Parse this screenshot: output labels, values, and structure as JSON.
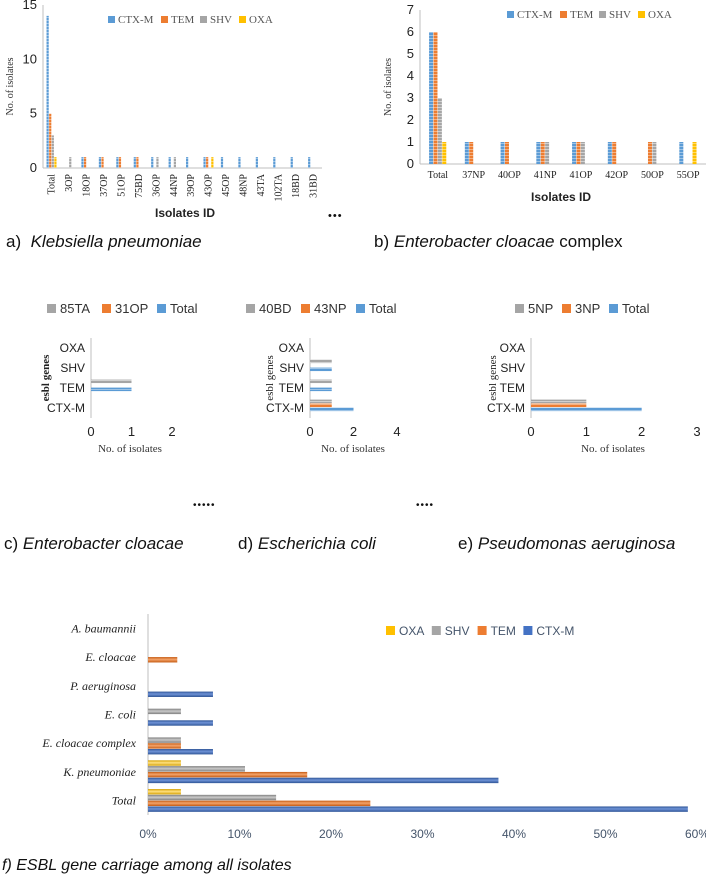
{
  "captions": {
    "a_prefix": "a)",
    "a_name": "Klebsiella pneumoniae",
    "b_prefix": "b)",
    "b_name": "Enterobacter cloacae",
    "b_suffix": "complex",
    "c_prefix": "c)",
    "c_name": "Enterobacter cloacae",
    "d_prefix": "d)",
    "d_name": "Escherichia coli",
    "e_prefix": "e)",
    "e_name": "Pseudomonas aeruginosa",
    "f": "f) ESBL gene carriage among all isolates"
  },
  "ellipses": {
    "a": "•••",
    "c": "•••••",
    "e": "••••"
  },
  "colors": {
    "ctx": "#5B9BD5",
    "tem": "#ED7D31",
    "shv": "#A5A5A5",
    "oxa": "#FFC000",
    "ctx_dark": "#4472C4",
    "axis": "#BFBFBF",
    "axis_dark": "#808080"
  },
  "chart_data": [
    {
      "id": "a",
      "type": "bar",
      "title": "",
      "xlabel": "Isolates ID",
      "ylabel": "No. of isolates",
      "ylim": [
        0,
        15
      ],
      "yticks": [
        "0",
        "5",
        "10",
        "15"
      ],
      "categories": [
        "Total",
        "3OP",
        "18OP",
        "37OP",
        "51OP",
        "75BD",
        "36OP",
        "44NP",
        "39OP",
        "43OP",
        "45OP",
        "48NP",
        "43TA",
        "102TA",
        "18BD",
        "31BD"
      ],
      "series": [
        {
          "name": "CTX-M",
          "values": [
            14,
            0,
            1,
            1,
            1,
            1,
            1,
            1,
            1,
            1,
            1,
            1,
            1,
            1,
            1,
            1
          ]
        },
        {
          "name": "TEM",
          "values": [
            5,
            0,
            1,
            1,
            1,
            1,
            0,
            0,
            0,
            1,
            0,
            0,
            0,
            0,
            0,
            0
          ]
        },
        {
          "name": "SHV",
          "values": [
            3,
            1,
            0,
            0,
            0,
            0,
            1,
            1,
            0,
            0,
            0,
            0,
            0,
            0,
            0,
            0
          ]
        },
        {
          "name": "OXA",
          "values": [
            1,
            0,
            0,
            0,
            0,
            0,
            0,
            0,
            0,
            1,
            0,
            0,
            0,
            0,
            0,
            0
          ]
        }
      ],
      "legend": [
        "CTX-M",
        "TEM",
        "SHV",
        "OXA"
      ],
      "legend_position": "top"
    },
    {
      "id": "b",
      "type": "bar",
      "title": "",
      "xlabel": "Isolates ID",
      "ylabel": "No. of isolates",
      "ylim": [
        0,
        7
      ],
      "yticks": [
        "0",
        "1",
        "2",
        "3",
        "4",
        "5",
        "6",
        "7"
      ],
      "categories": [
        "Total",
        "37NP",
        "40OP",
        "41NP",
        "41OP",
        "42OP",
        "50OP",
        "55OP"
      ],
      "series": [
        {
          "name": "CTX-M",
          "values": [
            6,
            1,
            1,
            1,
            1,
            1,
            0,
            1
          ]
        },
        {
          "name": "TEM",
          "values": [
            6,
            1,
            1,
            1,
            1,
            1,
            1,
            0
          ]
        },
        {
          "name": "SHV",
          "values": [
            3,
            0,
            0,
            1,
            1,
            0,
            1,
            0
          ]
        },
        {
          "name": "OXA",
          "values": [
            1,
            0,
            0,
            0,
            0,
            0,
            0,
            1
          ]
        }
      ],
      "legend": [
        "CTX-M",
        "TEM",
        "SHV",
        "OXA"
      ],
      "legend_position": "top"
    },
    {
      "id": "c",
      "type": "bar",
      "orientation": "horizontal",
      "xlabel": "No. of isolates",
      "ylabel": "esbl genes",
      "xlim": [
        0,
        2
      ],
      "xticks": [
        "0",
        "1",
        "2"
      ],
      "categories": [
        "CTX-M",
        "TEM",
        "SHV",
        "OXA"
      ],
      "series": [
        {
          "name": "Total",
          "values": [
            0,
            1,
            0,
            0
          ]
        },
        {
          "name": "31OP",
          "values": [
            0,
            0,
            0,
            0
          ]
        },
        {
          "name": "85TA",
          "values": [
            0,
            1,
            0,
            0
          ]
        }
      ],
      "legend": [
        "85TA",
        "31OP",
        "Total"
      ],
      "legend_position": "top"
    },
    {
      "id": "d",
      "type": "bar",
      "orientation": "horizontal",
      "xlabel": "No. of isolates",
      "ylabel": "esbl genes",
      "xlim": [
        0,
        4
      ],
      "xticks": [
        "0",
        "2",
        "4"
      ],
      "categories": [
        "CTX-M",
        "TEM",
        "SHV",
        "OXA"
      ],
      "series": [
        {
          "name": "Total",
          "values": [
            2,
            1,
            1,
            0
          ]
        },
        {
          "name": "43NP",
          "values": [
            1,
            0,
            0,
            0
          ]
        },
        {
          "name": "40BD",
          "values": [
            1,
            1,
            1,
            0
          ]
        }
      ],
      "legend": [
        "40BD",
        "43NP",
        "Total"
      ],
      "legend_position": "top"
    },
    {
      "id": "e",
      "type": "bar",
      "orientation": "horizontal",
      "xlabel": "No. of isolates",
      "ylabel": "esbl genes",
      "xlim": [
        0,
        3
      ],
      "xticks": [
        "0",
        "1",
        "2",
        "3"
      ],
      "categories": [
        "CTX-M",
        "TEM",
        "SHV",
        "OXA"
      ],
      "series": [
        {
          "name": "Total",
          "values": [
            2,
            0,
            0,
            0
          ]
        },
        {
          "name": "3NP",
          "values": [
            1,
            0,
            0,
            0
          ]
        },
        {
          "name": "5NP",
          "values": [
            1,
            0,
            0,
            0
          ]
        }
      ],
      "legend": [
        "5NP",
        "3NP",
        "Total"
      ],
      "legend_position": "top"
    },
    {
      "id": "f",
      "type": "bar",
      "orientation": "horizontal",
      "xlabel": "",
      "ylabel": "",
      "xlim": [
        0,
        60
      ],
      "xticks": [
        "0%",
        "10%",
        "20%",
        "30%",
        "40%",
        "50%",
        "60%"
      ],
      "categories": [
        "Total",
        "K. pneumoniae",
        "E. cloacae complex",
        "E. coli",
        "P. aeruginosa",
        "E. cloacae",
        "A. baumannii"
      ],
      "series": [
        {
          "name": "CTX-M",
          "values": [
            59,
            38.3,
            7.1,
            7.1,
            7.1,
            0,
            0
          ]
        },
        {
          "name": "TEM",
          "values": [
            24.3,
            17.4,
            3.6,
            0,
            0,
            3.2,
            0
          ]
        },
        {
          "name": "SHV",
          "values": [
            14,
            10.6,
            3.6,
            3.6,
            0,
            0,
            0
          ]
        },
        {
          "name": "OXA",
          "values": [
            3.6,
            3.6,
            0,
            0,
            0,
            0,
            0
          ]
        }
      ],
      "legend": [
        "OXA",
        "SHV",
        "TEM",
        "CTX-M"
      ],
      "legend_position": "top-right"
    }
  ]
}
